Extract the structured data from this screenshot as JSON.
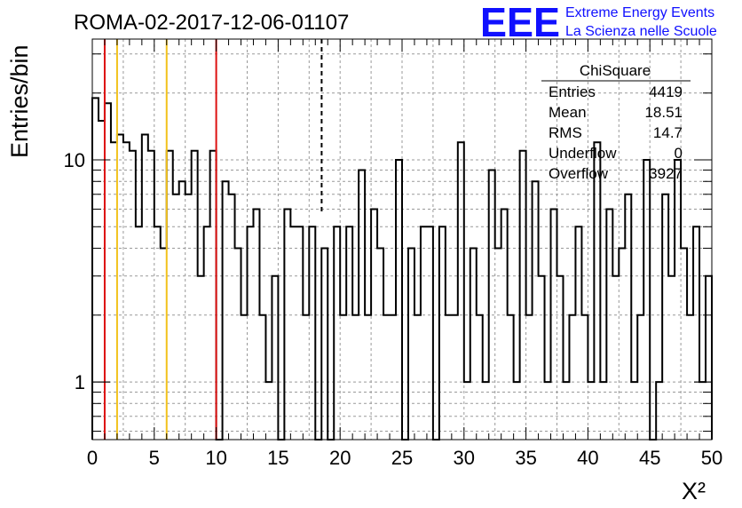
{
  "header": {
    "title": "ROMA-02-2017-12-06-01107",
    "logo_mark": "EEE",
    "logo_line1": "Extreme Energy Events",
    "logo_line2": "La Scienza nelle Scuole"
  },
  "stats_box": {
    "title": "ChiSquare",
    "rows": [
      {
        "label": "Entries",
        "value": "4419"
      },
      {
        "label": "Mean",
        "value": "18.51"
      },
      {
        "label": "RMS",
        "value": "14.7"
      },
      {
        "label": "Underflow",
        "value": "0"
      },
      {
        "label": "Overflow",
        "value": "3927"
      }
    ]
  },
  "colors": {
    "histogram": "#000000",
    "grid": "#999999",
    "logo": "#1010ff",
    "line_red": "#dd1111",
    "line_yellow": "#f2c21b",
    "line_dashed": "#000000"
  },
  "chart_data": {
    "type": "histogram",
    "title": "ROMA-02-2017-12-06-01107",
    "xlabel": "X²",
    "ylabel": "Entries/bin",
    "xlim": [
      0,
      50
    ],
    "ylim": [
      0.55,
      35
    ],
    "yscale": "log",
    "grid": true,
    "bin_width": 0.5,
    "x_ticks": [
      0,
      5,
      10,
      15,
      20,
      25,
      30,
      35,
      40,
      45,
      50
    ],
    "x_tick_labels": [
      "0",
      "5",
      "10",
      "15",
      "20",
      "25",
      "30",
      "35",
      "40",
      "45",
      "50"
    ],
    "y_ticks": [
      1,
      10
    ],
    "y_tick_labels": [
      "1",
      "10"
    ],
    "values": [
      19,
      15,
      18,
      12,
      13,
      12,
      11,
      5,
      13,
      11,
      5,
      4,
      11,
      7,
      8,
      7,
      11,
      3,
      5,
      11,
      0,
      8,
      7,
      4,
      2,
      5,
      6,
      2,
      1,
      3,
      0,
      6,
      5,
      5,
      2,
      5,
      0,
      4,
      0,
      5,
      2,
      5,
      2,
      9,
      2,
      6,
      4,
      2,
      2,
      10,
      0,
      4,
      2,
      5,
      5,
      0,
      5,
      2,
      2,
      12,
      1,
      4,
      2,
      1,
      9,
      4,
      6,
      2,
      1,
      11,
      2,
      8,
      3,
      1,
      6,
      3,
      1,
      2,
      5,
      2,
      1,
      12,
      1,
      6,
      3,
      4,
      7,
      1,
      2,
      10,
      0,
      1,
      7,
      3,
      10,
      4,
      2,
      5,
      1,
      3
    ],
    "vertical_lines": [
      {
        "x": 1,
        "color": "red",
        "style": "solid"
      },
      {
        "x": 2,
        "color": "yellow",
        "style": "solid"
      },
      {
        "x": 6,
        "color": "yellow",
        "style": "solid"
      },
      {
        "x": 10,
        "color": "red",
        "style": "solid"
      },
      {
        "x": 18.51,
        "color": "black",
        "style": "dashed"
      }
    ]
  }
}
